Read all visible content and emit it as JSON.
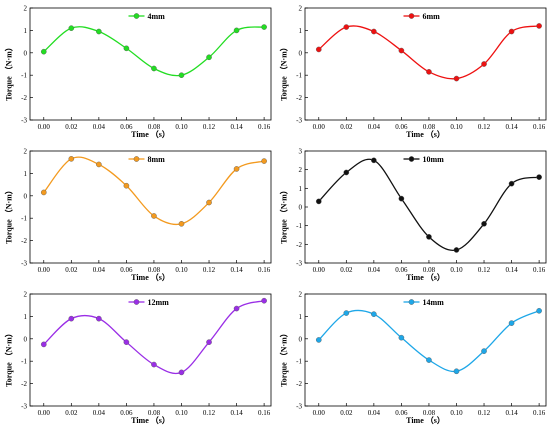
{
  "chart_data": [
    {
      "type": "line",
      "series": [
        {
          "name": "4mm",
          "color": "#22dd22",
          "x": [
            0.0,
            0.02,
            0.04,
            0.06,
            0.08,
            0.1,
            0.12,
            0.14,
            0.16
          ],
          "values": [
            0.05,
            1.1,
            0.95,
            0.2,
            -0.7,
            -1.0,
            -0.2,
            1.0,
            1.15
          ]
        }
      ],
      "xlabel": "Time （s）",
      "ylabel": "Torque （N·m）",
      "xlim": [
        -0.01,
        0.165
      ],
      "ylim": [
        -3,
        2
      ],
      "xticks": [
        "0.00",
        "0.02",
        "0.04",
        "0.06",
        "0.08",
        "0.10",
        "0.12",
        "0.14",
        "0.16"
      ],
      "yticks": [
        "-3",
        "-2",
        "-1",
        "0",
        "1",
        "2"
      ],
      "legend": "top-center"
    },
    {
      "type": "line",
      "series": [
        {
          "name": "6mm",
          "color": "#ee1111",
          "x": [
            0.0,
            0.02,
            0.04,
            0.06,
            0.08,
            0.1,
            0.12,
            0.14,
            0.16
          ],
          "values": [
            0.15,
            1.15,
            0.95,
            0.1,
            -0.85,
            -1.15,
            -0.5,
            0.95,
            1.2
          ]
        }
      ],
      "xlabel": "Time （s）",
      "ylabel": "Torque （N·m）",
      "xlim": [
        -0.01,
        0.165
      ],
      "ylim": [
        -3,
        2
      ],
      "xticks": [
        "0.00",
        "0.02",
        "0.04",
        "0.06",
        "0.08",
        "0.10",
        "0.12",
        "0.14",
        "0.16"
      ],
      "yticks": [
        "-3",
        "-2",
        "-1",
        "0",
        "1",
        "2"
      ],
      "legend": "top-center"
    },
    {
      "type": "line",
      "series": [
        {
          "name": "8mm",
          "color": "#f39a1f",
          "x": [
            0.0,
            0.02,
            0.04,
            0.06,
            0.08,
            0.1,
            0.12,
            0.14,
            0.16
          ],
          "values": [
            0.15,
            1.65,
            1.4,
            0.45,
            -0.9,
            -1.25,
            -0.3,
            1.2,
            1.55
          ]
        }
      ],
      "xlabel": "Time （s）",
      "ylabel": "Torque （N·m）",
      "xlim": [
        -0.01,
        0.165
      ],
      "ylim": [
        -3,
        2
      ],
      "xticks": [
        "0.00",
        "0.02",
        "0.04",
        "0.06",
        "0.08",
        "0.10",
        "0.12",
        "0.14",
        "0.16"
      ],
      "yticks": [
        "-3",
        "-2",
        "-1",
        "0",
        "1",
        "2"
      ],
      "legend": "top-center"
    },
    {
      "type": "line",
      "series": [
        {
          "name": "10mm",
          "color": "#111111",
          "x": [
            0.0,
            0.02,
            0.04,
            0.06,
            0.08,
            0.1,
            0.12,
            0.14,
            0.16
          ],
          "values": [
            0.3,
            1.85,
            2.5,
            0.45,
            -1.6,
            -2.3,
            -0.9,
            1.25,
            1.6
          ]
        }
      ],
      "xlabel": "Time （s）",
      "ylabel": "Torque （N·m）",
      "xlim": [
        -0.01,
        0.165
      ],
      "ylim": [
        -3,
        3
      ],
      "xticks": [
        "0.00",
        "0.02",
        "0.04",
        "0.06",
        "0.08",
        "0.10",
        "0.12",
        "0.14",
        "0.16"
      ],
      "yticks": [
        "-3",
        "-2",
        "-1",
        "0",
        "1",
        "2",
        "3"
      ],
      "legend": "top-center"
    },
    {
      "type": "line",
      "series": [
        {
          "name": "12mm",
          "color": "#9a2ee6",
          "x": [
            0.0,
            0.02,
            0.04,
            0.06,
            0.08,
            0.1,
            0.12,
            0.14,
            0.16
          ],
          "values": [
            -0.25,
            0.9,
            0.9,
            -0.15,
            -1.15,
            -1.5,
            -0.15,
            1.35,
            1.7
          ]
        }
      ],
      "xlabel": "Time （s）",
      "ylabel": "Torque （N·m）",
      "xlim": [
        -0.01,
        0.165
      ],
      "ylim": [
        -3,
        2
      ],
      "xticks": [
        "0.00",
        "0.02",
        "0.04",
        "0.06",
        "0.08",
        "0.10",
        "0.12",
        "0.14",
        "0.16"
      ],
      "yticks": [
        "-3",
        "-2",
        "-1",
        "0",
        "1",
        "2"
      ],
      "legend": "top-center"
    },
    {
      "type": "line",
      "series": [
        {
          "name": "14mm",
          "color": "#1ea7e8",
          "x": [
            0.0,
            0.02,
            0.04,
            0.06,
            0.08,
            0.1,
            0.12,
            0.14,
            0.16
          ],
          "values": [
            -0.05,
            1.15,
            1.1,
            0.05,
            -0.95,
            -1.45,
            -0.55,
            0.7,
            1.25
          ]
        }
      ],
      "xlabel": "Time （s）",
      "ylabel": "Torque （N·m）",
      "xlim": [
        -0.01,
        0.165
      ],
      "ylim": [
        -3,
        2
      ],
      "xticks": [
        "0.00",
        "0.02",
        "0.04",
        "0.06",
        "0.08",
        "0.10",
        "0.12",
        "0.14",
        "0.16"
      ],
      "yticks": [
        "-3",
        "-2",
        "-1",
        "0",
        "1",
        "2"
      ],
      "legend": "top-center"
    }
  ]
}
